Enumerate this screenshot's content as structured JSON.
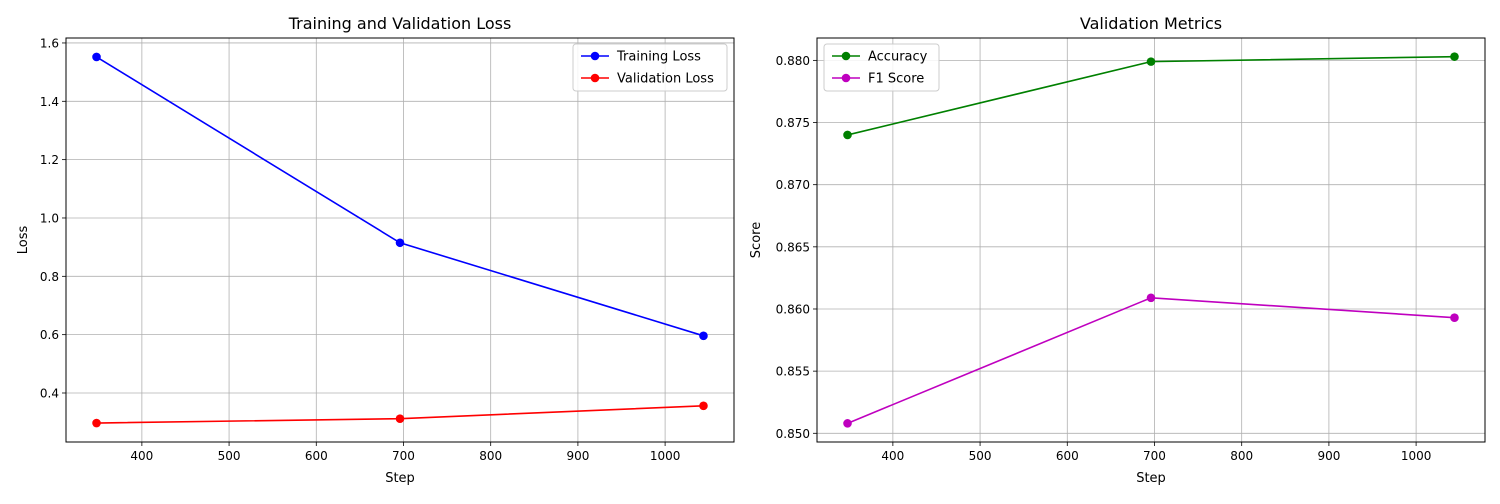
{
  "chart_data": [
    {
      "type": "line",
      "title": "Training and Validation Loss",
      "xlabel": "Step",
      "ylabel": "Loss",
      "xlim": [
        313,
        1079
      ],
      "ylim": [
        0.232,
        1.617
      ],
      "xticks": [
        400,
        500,
        600,
        700,
        800,
        900,
        1000
      ],
      "xtick_labels": [
        "400",
        "500",
        "600",
        "700",
        "800",
        "900",
        "1000"
      ],
      "yticks": [
        0.4,
        0.6,
        0.8,
        1.0,
        1.2,
        1.4,
        1.6
      ],
      "ytick_labels": [
        "0.4",
        "0.6",
        "0.8",
        "1.0",
        "1.2",
        "1.4",
        "1.6"
      ],
      "grid": true,
      "legend_position": "top-right",
      "series": [
        {
          "name": "Training Loss",
          "color": "#0000ff",
          "x": [
            348,
            696,
            1044
          ],
          "y": [
            1.552,
            0.915,
            0.596
          ]
        },
        {
          "name": "Validation Loss",
          "color": "#ff0000",
          "x": [
            348,
            696,
            1044
          ],
          "y": [
            0.297,
            0.312,
            0.356
          ]
        }
      ]
    },
    {
      "type": "line",
      "title": "Validation Metrics",
      "xlabel": "Step",
      "ylabel": "Score",
      "xlim": [
        313,
        1079
      ],
      "ylim": [
        0.8493,
        0.8818
      ],
      "xticks": [
        400,
        500,
        600,
        700,
        800,
        900,
        1000
      ],
      "xtick_labels": [
        "400",
        "500",
        "600",
        "700",
        "800",
        "900",
        "1000"
      ],
      "yticks": [
        0.85,
        0.855,
        0.86,
        0.865,
        0.87,
        0.875,
        0.88
      ],
      "ytick_labels": [
        "0.850",
        "0.855",
        "0.860",
        "0.865",
        "0.870",
        "0.875",
        "0.880"
      ],
      "grid": true,
      "legend_position": "top-left",
      "series": [
        {
          "name": "Accuracy",
          "color": "#008000",
          "x": [
            348,
            696,
            1044
          ],
          "y": [
            0.874,
            0.8799,
            0.8803
          ]
        },
        {
          "name": "F1 Score",
          "color": "#bf00bf",
          "x": [
            348,
            696,
            1044
          ],
          "y": [
            0.8508,
            0.8609,
            0.8593
          ]
        }
      ]
    }
  ]
}
